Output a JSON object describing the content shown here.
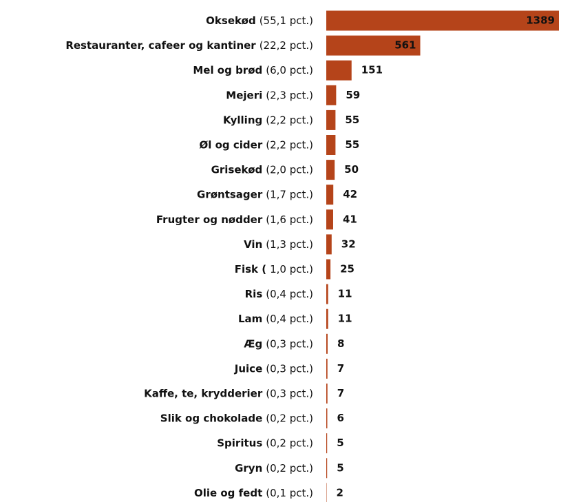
{
  "chart_data": {
    "type": "hbar",
    "color": "#b5441a",
    "categories": [
      "Oksekød",
      "Restauranter, cafeer og kantiner",
      "Mel og brød",
      "Mejeri",
      "Kylling",
      "Øl og cider",
      "Grisekød",
      "Grøntsager",
      "Frugter og nødder",
      "Vin",
      "Fisk (",
      "Ris",
      "Lam",
      "Æg",
      "Juice",
      "Kaffe, te, krydderier",
      "Slik og chokolade",
      "Spiritus",
      "Gryn",
      "Olie og fedt"
    ],
    "shares": [
      "(55,1 pct.)",
      "(22,2 pct.)",
      "(6,0 pct.)",
      "(2,3 pct.)",
      "(2,2 pct.)",
      "(2,2 pct.)",
      "(2,0 pct.)",
      "(1,7 pct.)",
      "(1,6 pct.)",
      "(1,3 pct.)",
      "1,0 pct.)",
      "(0,4 pct.)",
      "(0,4 pct.)",
      "(0,3 pct.)",
      "(0,3 pct.)",
      "(0,3 pct.)",
      "(0,2 pct.)",
      "(0,2 pct.)",
      "(0,2 pct.)",
      "(0,1 pct.)"
    ],
    "values": [
      1389,
      561,
      151,
      59,
      55,
      55,
      50,
      42,
      41,
      32,
      25,
      11,
      11,
      8,
      7,
      7,
      6,
      5,
      5,
      2
    ],
    "xlim": [
      0,
      1389
    ]
  }
}
